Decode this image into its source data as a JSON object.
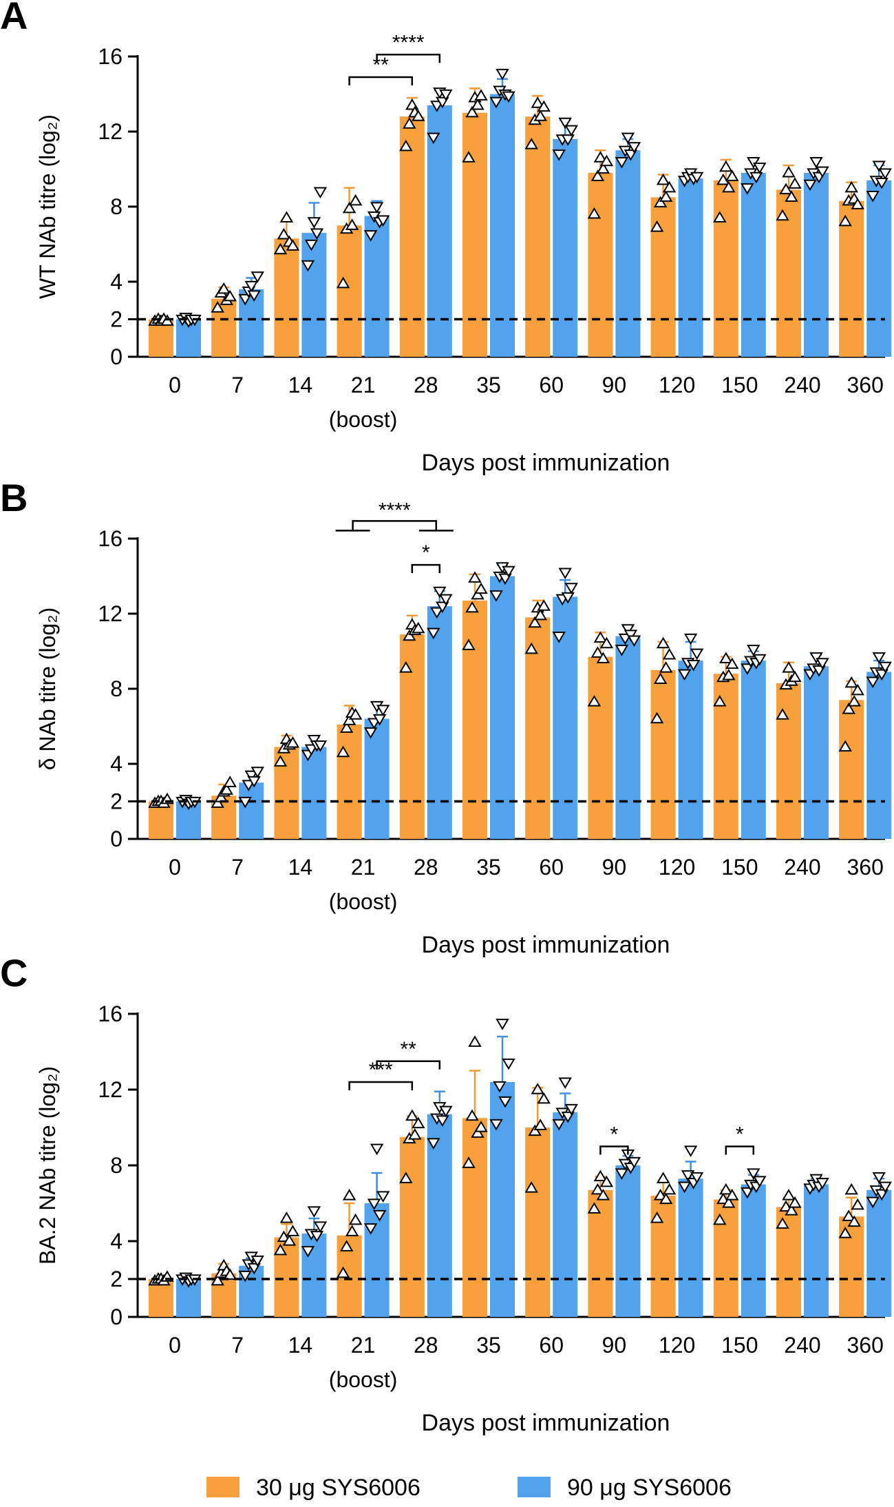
{
  "colors": {
    "low_dose": "#F8A03C",
    "high_dose": "#52A3EE",
    "low_dose_err": "#F19B36",
    "high_dose_err": "#3E8FE0"
  },
  "legend": {
    "low_dose_label": "30 μg SYS6006",
    "high_dose_label": "90 μg SYS6006"
  },
  "chart_data": [
    {
      "type": "bar",
      "panel_label": "A",
      "ylabel": "WT NAb titre (log₂)",
      "xlabel": "Days post immunization",
      "categories": [
        "0",
        "7",
        "14",
        "21",
        "28",
        "35",
        "60",
        "90",
        "120",
        "150",
        "240",
        "360"
      ],
      "boost_label": "(boost)",
      "yticks": [
        0,
        2,
        4,
        8,
        12,
        16
      ],
      "ylim": [
        0,
        16
      ],
      "reference_line": 2,
      "series": [
        {
          "name": "30 μg SYS6006",
          "values": [
            2.0,
            3.1,
            6.3,
            7.0,
            12.8,
            13.0,
            12.8,
            9.8,
            8.5,
            9.4,
            8.9,
            8.3
          ],
          "err": [
            0,
            0.6,
            1.0,
            2.0,
            1.0,
            1.3,
            1.1,
            1.2,
            1.2,
            1.1,
            1.3,
            1.0
          ],
          "points": [
            [
              1.9,
              2.0,
              1.9,
              2.0,
              1.9
            ],
            [
              2.6,
              3.4,
              3.6,
              3.0,
              3.2
            ],
            [
              5.7,
              6.5,
              7.4,
              6.1,
              5.9
            ],
            [
              3.9,
              6.8,
              7.9,
              7.0,
              8.3
            ],
            [
              11.2,
              12.4,
              13.4,
              13.0,
              12.8
            ],
            [
              10.6,
              13.0,
              13.8,
              13.4,
              13.9
            ],
            [
              11.3,
              12.6,
              13.5,
              12.8,
              13.3
            ],
            [
              7.6,
              9.6,
              10.6,
              10.0,
              10.4
            ],
            [
              6.9,
              8.2,
              9.4,
              8.5,
              9.0
            ],
            [
              7.4,
              9.4,
              10.1,
              9.0,
              9.6
            ],
            [
              7.5,
              8.9,
              9.8,
              8.5,
              9.2
            ],
            [
              7.2,
              8.3,
              9.0,
              8.4,
              8.1
            ]
          ]
        },
        {
          "name": "90 μg SYS6006",
          "values": [
            2.0,
            3.6,
            6.6,
            7.5,
            13.4,
            14.0,
            11.6,
            11.0,
            9.5,
            9.8,
            9.8,
            9.4
          ],
          "err": [
            0,
            0.6,
            1.6,
            0.8,
            0.8,
            0.8,
            1.0,
            0.6,
            0.3,
            0.7,
            0.8,
            0.8
          ],
          "points": [
            [
              2.0,
              2.1,
              1.9,
              2.0,
              2.0
            ],
            [
              3.1,
              3.5,
              3.8,
              3.3,
              4.3
            ],
            [
              4.9,
              6.0,
              7.2,
              6.6,
              8.8
            ],
            [
              6.5,
              7.5,
              8.0,
              7.2,
              7.3
            ],
            [
              11.7,
              13.4,
              14.1,
              13.6,
              14.0
            ],
            [
              13.6,
              14.2,
              15.1,
              14.0,
              13.9
            ],
            [
              10.8,
              11.6,
              12.5,
              11.6,
              12.1
            ],
            [
              10.4,
              11.0,
              11.7,
              10.8,
              11.2
            ],
            [
              9.4,
              9.6,
              9.8,
              9.5,
              9.6
            ],
            [
              9.0,
              9.8,
              10.4,
              9.6,
              10.1
            ],
            [
              9.2,
              9.8,
              10.4,
              9.6,
              9.9
            ],
            [
              8.6,
              9.4,
              10.2,
              9.3,
              9.8
            ]
          ]
        }
      ],
      "significance": [
        {
          "from": [
            3,
            0
          ],
          "to": [
            4,
            0
          ],
          "label": "**",
          "y": 14.9
        },
        {
          "from": [
            3,
            1
          ],
          "to": [
            4,
            1
          ],
          "label": "****",
          "y": 16.1
        }
      ]
    },
    {
      "type": "bar",
      "panel_label": "B",
      "ylabel": "δ  NAb titre (log₂)",
      "xlabel": "Days post immunization",
      "categories": [
        "0",
        "7",
        "14",
        "21",
        "28",
        "35",
        "60",
        "90",
        "120",
        "150",
        "240",
        "360"
      ],
      "boost_label": "(boost)",
      "yticks": [
        0,
        2,
        4,
        8,
        12,
        16
      ],
      "ylim": [
        0,
        16
      ],
      "reference_line": 2,
      "series": [
        {
          "name": "30 μg SYS6006",
          "values": [
            2.0,
            2.3,
            4.9,
            6.1,
            10.9,
            12.7,
            11.8,
            9.7,
            9.0,
            8.8,
            8.3,
            7.4
          ],
          "err": [
            0,
            0.6,
            0.6,
            1.0,
            1.0,
            1.4,
            0.9,
            1.3,
            1.5,
            0.9,
            1.1,
            1.0
          ],
          "points": [
            [
              1.9,
              2.0,
              2.0,
              1.9,
              2.1
            ],
            [
              1.9,
              2.2,
              2.5,
              2.6,
              3.0
            ],
            [
              4.1,
              4.8,
              5.3,
              5.0,
              5.1
            ],
            [
              4.6,
              5.9,
              6.3,
              6.7,
              6.6
            ],
            [
              9.1,
              10.8,
              11.4,
              11.1,
              11.2
            ],
            [
              10.3,
              12.3,
              13.9,
              13.0,
              13.3
            ],
            [
              10.1,
              11.5,
              12.3,
              11.9,
              12.4
            ],
            [
              7.3,
              9.9,
              10.7,
              9.6,
              10.4
            ],
            [
              6.4,
              8.5,
              10.4,
              9.1,
              9.8
            ],
            [
              7.3,
              8.6,
              9.6,
              8.7,
              9.3
            ],
            [
              6.6,
              8.2,
              9.1,
              8.4,
              8.6
            ],
            [
              4.9,
              6.9,
              8.3,
              7.3,
              7.9
            ]
          ]
        },
        {
          "name": "90 μg SYS6006",
          "values": [
            2.0,
            3.0,
            4.9,
            6.4,
            12.4,
            14.0,
            12.9,
            10.8,
            9.5,
            9.5,
            9.2,
            8.9
          ],
          "err": [
            0,
            0.6,
            0.5,
            0.9,
            0.8,
            0.6,
            0.9,
            0.5,
            1.0,
            0.5,
            0.6,
            0.6
          ],
          "points": [
            [
              2.0,
              2.1,
              1.9,
              2.0,
              2.0
            ],
            [
              2.0,
              2.9,
              3.4,
              3.1,
              3.6
            ],
            [
              4.5,
              4.8,
              5.3,
              5.0,
              5.0
            ],
            [
              5.7,
              6.2,
              7.1,
              6.4,
              6.9
            ],
            [
              11.0,
              12.1,
              13.2,
              12.4,
              12.8
            ],
            [
              13.0,
              14.0,
              14.5,
              13.9,
              14.3
            ],
            [
              10.8,
              12.8,
              14.2,
              12.9,
              13.4
            ],
            [
              10.1,
              10.7,
              11.2,
              10.9,
              10.6
            ],
            [
              8.8,
              9.4,
              10.7,
              9.3,
              9.9
            ],
            [
              9.1,
              9.5,
              10.1,
              9.4,
              9.6
            ],
            [
              8.8,
              9.1,
              9.7,
              9.0,
              9.4
            ],
            [
              8.4,
              8.9,
              9.7,
              8.8,
              9.2
            ]
          ]
        }
      ],
      "significance": [
        {
          "from": [
            4,
            0
          ],
          "to": [
            4,
            1
          ],
          "label": "*",
          "y": 14.6
        },
        {
          "from": [
            3,
            0
          ],
          "to": [
            4,
            1
          ],
          "label": "****",
          "y": 16.5,
          "grouped": true
        }
      ]
    },
    {
      "type": "bar",
      "panel_label": "C",
      "ylabel": "BA.2 NAb titre (log₂)",
      "xlabel": "Days post immunization",
      "categories": [
        "0",
        "7",
        "14",
        "21",
        "28",
        "35",
        "60",
        "90",
        "120",
        "150",
        "240",
        "360"
      ],
      "boost_label": "(boost)",
      "yticks": [
        0,
        2,
        4,
        8,
        12,
        16
      ],
      "ylim": [
        0,
        16
      ],
      "reference_line": 2,
      "series": [
        {
          "name": "30 μg SYS6006",
          "values": [
            2.0,
            2.3,
            4.2,
            4.3,
            9.5,
            10.5,
            10.0,
            6.7,
            6.4,
            6.2,
            5.8,
            5.3
          ],
          "err": [
            0,
            0.5,
            0.7,
            1.7,
            1.1,
            2.5,
            2.1,
            0.7,
            0.8,
            0.5,
            0.5,
            1.0
          ],
          "points": [
            [
              1.9,
              2.0,
              2.0,
              1.9,
              2.1
            ],
            [
              1.9,
              2.3,
              2.7,
              2.4,
              2.2
            ],
            [
              3.5,
              4.2,
              5.2,
              4.0,
              4.5
            ],
            [
              2.3,
              3.7,
              6.4,
              4.5,
              5.1
            ],
            [
              7.3,
              9.4,
              10.6,
              9.6,
              10.2
            ],
            [
              8.1,
              10.6,
              14.5,
              9.7,
              10.0
            ],
            [
              6.8,
              9.8,
              12.0,
              10.1,
              11.5
            ],
            [
              5.7,
              6.7,
              7.4,
              6.4,
              7.1
            ],
            [
              5.2,
              6.4,
              7.3,
              6.2,
              6.7
            ],
            [
              5.1,
              6.2,
              6.7,
              6.0,
              6.4
            ],
            [
              4.9,
              5.8,
              6.4,
              5.6,
              6.0
            ],
            [
              4.4,
              5.3,
              6.7,
              5.0,
              5.9
            ]
          ]
        },
        {
          "name": "90 μg SYS6006",
          "values": [
            2.0,
            2.7,
            4.4,
            6.0,
            10.7,
            12.4,
            10.8,
            8.0,
            7.3,
            7.0,
            7.0,
            6.7
          ],
          "err": [
            0,
            0.4,
            0.8,
            1.6,
            1.2,
            2.4,
            1.0,
            0.5,
            0.9,
            0.5,
            0.3,
            0.6
          ],
          "points": [
            [
              2.0,
              2.1,
              1.9,
              2.0,
              2.0
            ],
            [
              2.2,
              2.8,
              3.2,
              2.6,
              3.0
            ],
            [
              3.5,
              4.4,
              5.6,
              4.3,
              4.8
            ],
            [
              4.7,
              6.0,
              8.9,
              5.4,
              6.4
            ],
            [
              9.2,
              10.5,
              11.1,
              10.4,
              10.9
            ],
            [
              10.2,
              12.2,
              15.5,
              11.4,
              13.4
            ],
            [
              10.2,
              10.8,
              12.4,
              10.6,
              11.0
            ],
            [
              7.6,
              8.1,
              8.6,
              7.9,
              8.2
            ],
            [
              6.9,
              7.5,
              8.8,
              7.1,
              7.4
            ],
            [
              6.6,
              7.0,
              7.6,
              6.9,
              7.2
            ],
            [
              6.8,
              7.0,
              7.3,
              6.9,
              7.1
            ],
            [
              6.1,
              6.7,
              7.4,
              6.5,
              6.9
            ]
          ]
        }
      ],
      "significance": [
        {
          "from": [
            3,
            0
          ],
          "to": [
            4,
            0
          ],
          "label": "***",
          "y": 12.4
        },
        {
          "from": [
            3,
            1
          ],
          "to": [
            4,
            1
          ],
          "label": "**",
          "y": 13.5
        },
        {
          "from": [
            7,
            0
          ],
          "to": [
            7,
            1
          ],
          "label": "*",
          "y": 9.0
        },
        {
          "from": [
            9,
            0
          ],
          "to": [
            9,
            1
          ],
          "label": "*",
          "y": 9.0
        }
      ]
    }
  ]
}
